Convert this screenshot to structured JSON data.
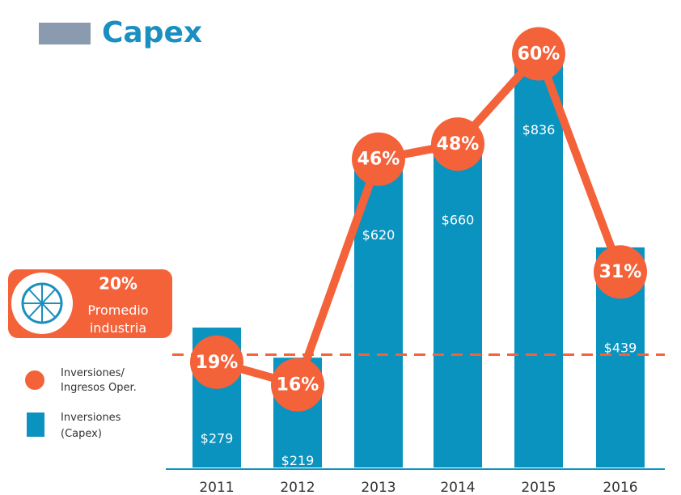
{
  "chart_data": {
    "type": "bar-line",
    "title": "Capex",
    "categories": [
      "2011",
      "2012",
      "2013",
      "2014",
      "2015",
      "2016"
    ],
    "series": [
      {
        "name": "Inversiones\n(Capex)",
        "color": "#0b93bf",
        "values": [
          279,
          219,
          620,
          660,
          836,
          439
        ],
        "value_labels": [
          "$279",
          "$219",
          "$620",
          "$660",
          "$836",
          "$439"
        ]
      },
      {
        "name": "Inversiones/\nIngresos Oper.",
        "color": "#f4623a",
        "axis": "y2",
        "values": [
          19,
          16,
          46,
          48,
          60,
          31
        ],
        "value_labels": [
          "19%",
          "16%",
          "46%",
          "48%",
          "60%",
          "31%"
        ]
      }
    ],
    "reference": {
      "value": 20,
      "label": "20%",
      "name": "Promedio\nindustria",
      "color": "#f4623a"
    },
    "ylim": [
      0,
      900
    ],
    "y2lim": [
      5,
      65
    ]
  }
}
